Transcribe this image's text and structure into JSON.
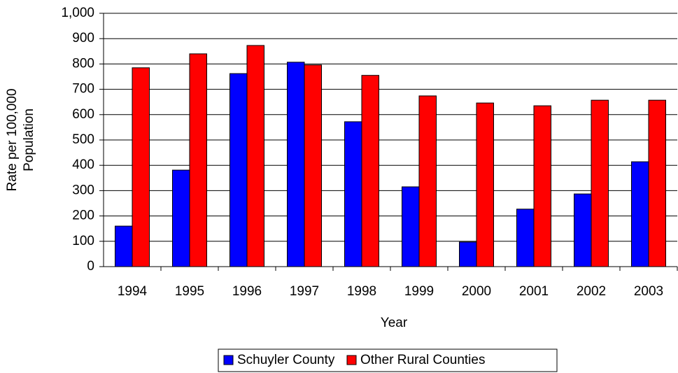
{
  "chart_data": {
    "type": "bar",
    "xlabel": "Year",
    "ylabel": [
      "Rate per 100,000",
      "Population"
    ],
    "categories": [
      "1994",
      "1995",
      "1996",
      "1997",
      "1998",
      "1999",
      "2000",
      "2001",
      "2002",
      "2003"
    ],
    "series": [
      {
        "name": "Schuyler County",
        "color": "#0000ff",
        "values": [
          160,
          381,
          762,
          807,
          572,
          315,
          97,
          227,
          287,
          414
        ]
      },
      {
        "name": "Other Rural Counties",
        "color": "#ff0000",
        "values": [
          785,
          840,
          873,
          796,
          755,
          674,
          646,
          635,
          657,
          657
        ]
      }
    ],
    "ylim": [
      0,
      1000
    ],
    "yticks": [
      0,
      100,
      200,
      300,
      400,
      500,
      600,
      700,
      800,
      900,
      {
        "value": 1000,
        "label": "1,000"
      }
    ],
    "grid": true,
    "legend": "bottom"
  }
}
